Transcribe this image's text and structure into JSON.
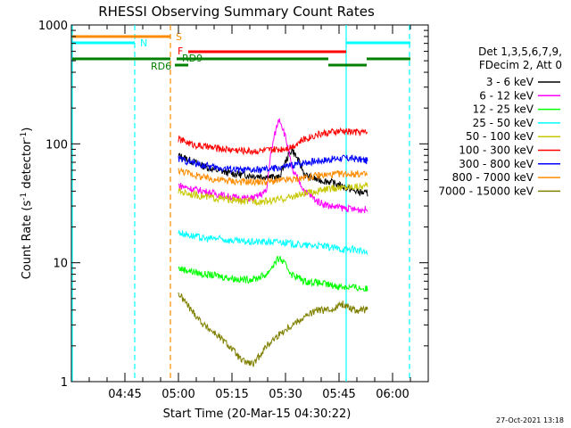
{
  "chart_data": {
    "type": "line",
    "title": "RHESSI Observing Summary Count Rates",
    "xlabel": "Start Time (20-Mar-15 04:30:22)",
    "ylabel": "Count Rate (s",
    "ylabel_sup": "-1",
    "ylabel_tail": " detector",
    "ylabel_sup2": "-1",
    "ylabel_end": ")",
    "y_scale": "log",
    "ylim": [
      1,
      1000
    ],
    "xlim": [
      "04:30",
      "06:10"
    ],
    "x_ticks": [
      "04:45",
      "05:00",
      "05:15",
      "05:30",
      "05:45",
      "06:00"
    ],
    "y_ticks": [
      "1",
      "10",
      "100",
      "1000"
    ],
    "timestamp": "27-Oct-2021 13:18",
    "legend_header": [
      "Det 1,3,5,6,7,9,",
      "FDecim 2, Att 0"
    ],
    "legend_placement": "right",
    "series": [
      {
        "name": "3 - 6 keV",
        "color": "#000000",
        "values": [
          80,
          72,
          65,
          60,
          57,
          55,
          54,
          53,
          52,
          90,
          55,
          50,
          48,
          44,
          40,
          38
        ]
      },
      {
        "name": "6 - 12 keV",
        "color": "#ff00ff",
        "values": [
          45,
          42,
          40,
          38,
          36,
          35,
          35,
          40,
          165,
          60,
          40,
          33,
          30,
          29,
          28,
          28
        ]
      },
      {
        "name": "12 - 25 keV",
        "color": "#00ff00",
        "values": [
          9,
          8.5,
          8,
          7.8,
          7.5,
          7.2,
          7.3,
          8,
          11,
          8,
          7,
          6.8,
          6.5,
          6.3,
          6.2,
          6
        ]
      },
      {
        "name": "25 - 50 keV",
        "color": "#00ffff",
        "values": [
          18,
          17,
          16,
          16,
          15.5,
          15,
          15,
          15,
          15,
          14.5,
          14,
          14,
          13.5,
          13,
          13,
          12
        ]
      },
      {
        "name": "50 - 100 keV",
        "color": "#c8c800",
        "values": [
          40,
          38,
          36,
          35,
          34,
          33,
          33,
          33,
          34,
          36,
          38,
          40,
          42,
          43,
          44,
          44
        ]
      },
      {
        "name": "100 - 300 keV",
        "color": "#ff0000",
        "values": [
          110,
          100,
          95,
          92,
          90,
          88,
          87,
          88,
          90,
          95,
          110,
          120,
          125,
          128,
          126,
          125
        ]
      },
      {
        "name": "300 - 800 keV",
        "color": "#0000ff",
        "values": [
          75,
          70,
          66,
          63,
          62,
          60,
          60,
          61,
          63,
          66,
          70,
          72,
          74,
          76,
          75,
          72
        ]
      },
      {
        "name": "800 - 7000 keV",
        "color": "#ff8c00",
        "values": [
          60,
          56,
          52,
          50,
          49,
          48,
          48,
          48,
          49,
          50,
          52,
          54,
          55,
          56,
          56,
          55
        ]
      },
      {
        "name": "7000 - 15000 keV",
        "color": "#808000",
        "values": [
          5.5,
          4,
          3,
          2.5,
          2,
          1.5,
          1.4,
          2,
          2.5,
          3,
          3.5,
          4,
          4,
          4.5,
          4,
          4
        ]
      }
    ],
    "flags": [
      {
        "label": "S",
        "color": "#ff8c00"
      },
      {
        "label": "N",
        "color": "#00ffff"
      },
      {
        "label": "F",
        "color": "#ff0000"
      },
      {
        "label": "RD6",
        "color": "#008000"
      },
      {
        "label": "RD9",
        "color": "#008000"
      }
    ]
  }
}
